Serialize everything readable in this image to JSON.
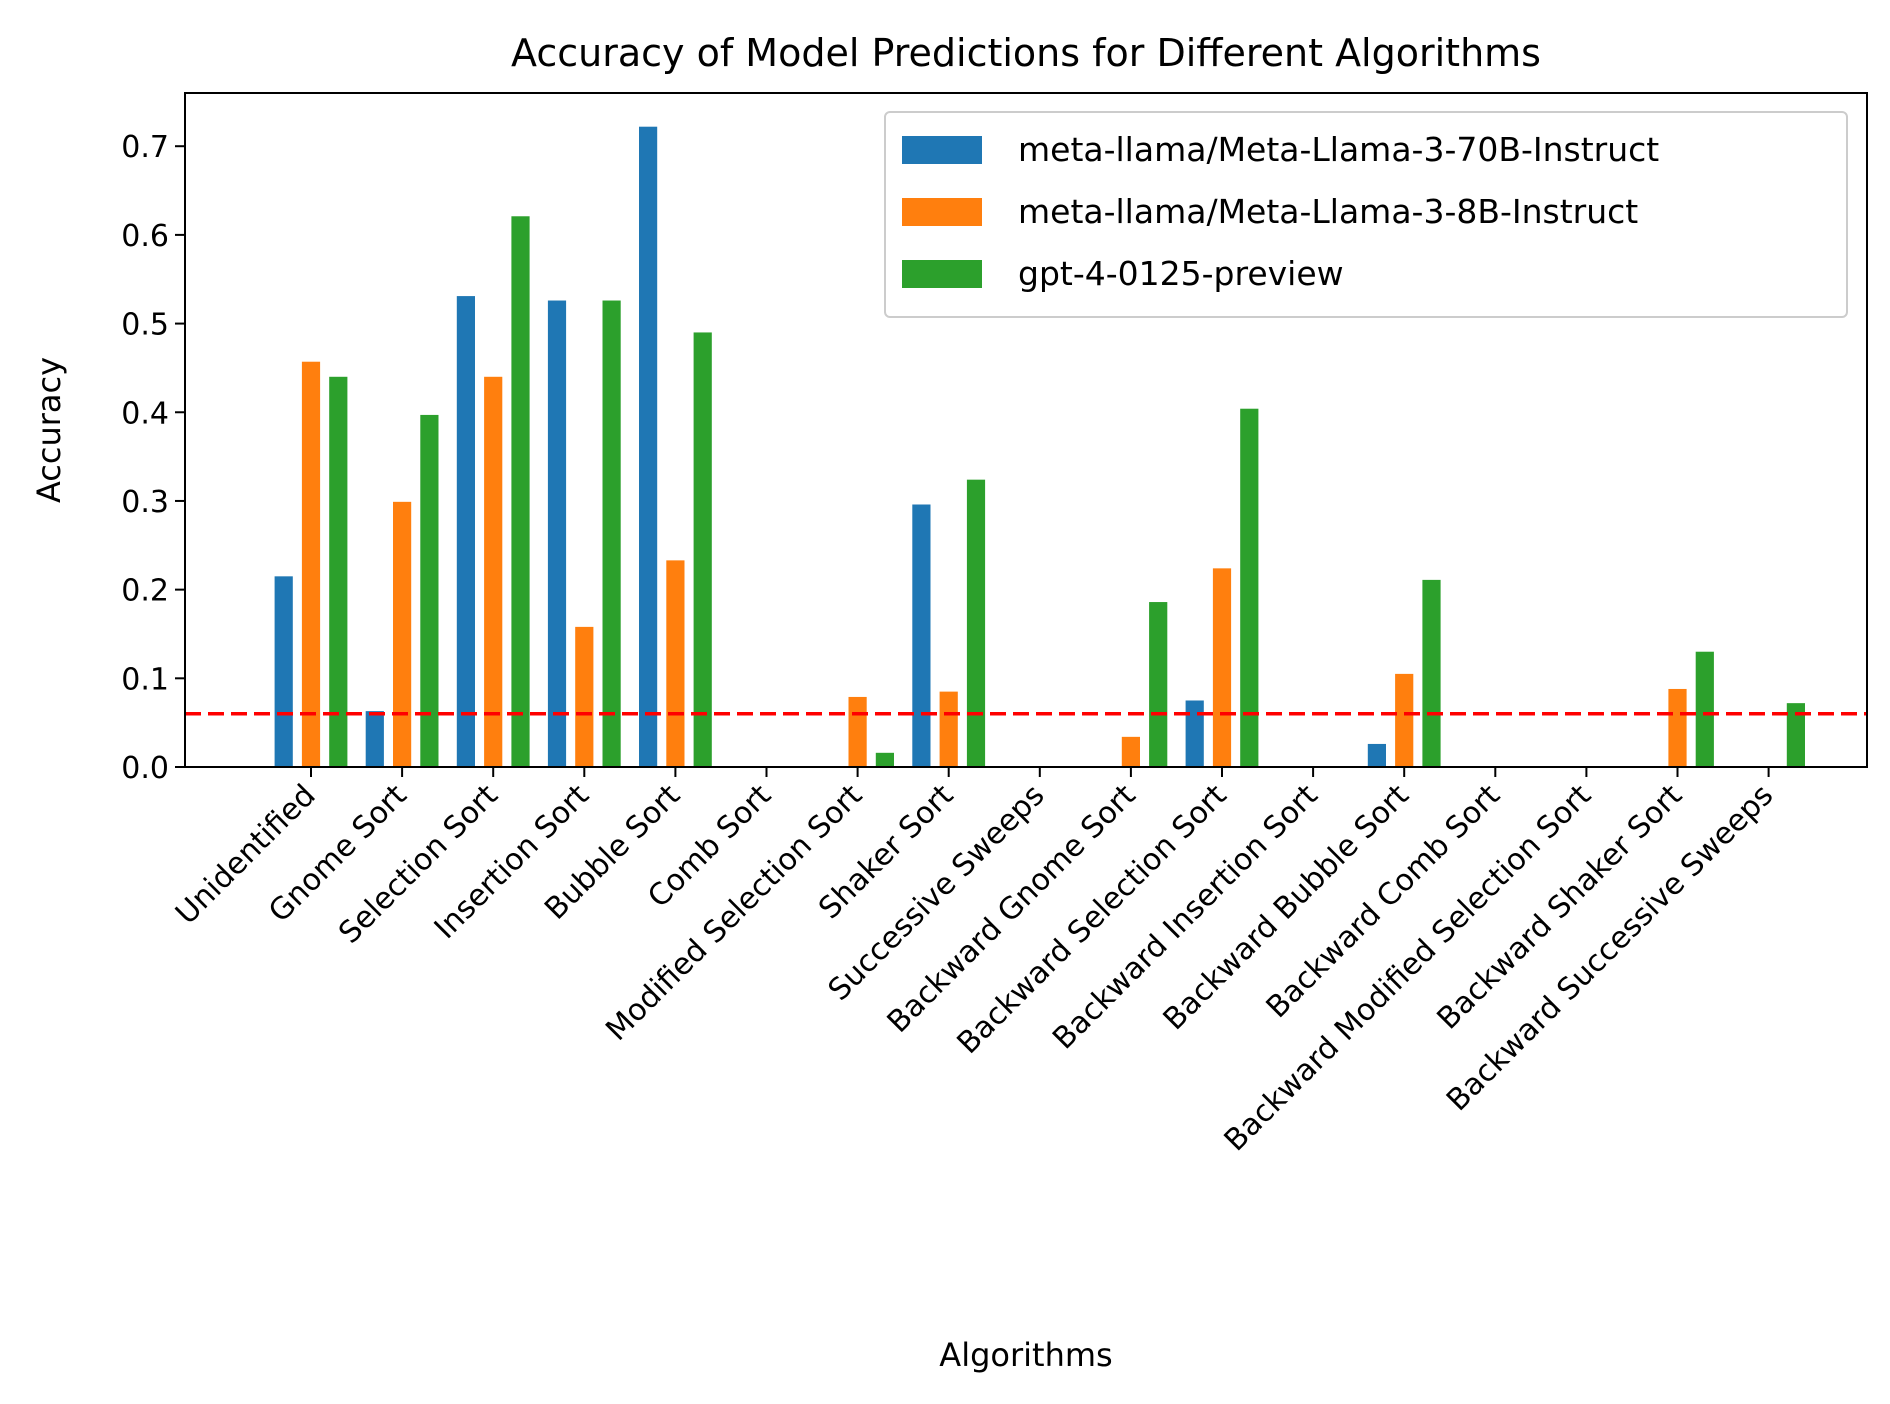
{
  "chart_data": {
    "type": "bar",
    "title": "Accuracy of Model Predictions for Different Algorithms",
    "xlabel": "Algorithms",
    "ylabel": "Accuracy",
    "ylim": [
      0,
      0.76
    ],
    "yticks": [
      0.0,
      0.1,
      0.2,
      0.3,
      0.4,
      0.5,
      0.6,
      0.7
    ],
    "ytick_labels": [
      "0.0",
      "0.1",
      "0.2",
      "0.3",
      "0.4",
      "0.5",
      "0.6",
      "0.7"
    ],
    "grid": false,
    "legend_position": "top-right",
    "reference_line": {
      "y": 0.06,
      "color": "#ff0000",
      "style": "dashed"
    },
    "categories": [
      "Unidentified",
      "Gnome Sort",
      "Selection Sort",
      "Insertion Sort",
      "Bubble Sort",
      "Comb Sort",
      "Modified Selection Sort",
      "Shaker Sort",
      "Successive Sweeps",
      "Backward Gnome Sort",
      "Backward Selection Sort",
      "Backward Insertion Sort",
      "Backward Bubble Sort",
      "Backward Comb Sort",
      "Backward Modified Selection Sort",
      "Backward Shaker Sort",
      "Backward Successive Sweeps"
    ],
    "series": [
      {
        "name": "meta-llama/Meta-Llama-3-70B-Instruct",
        "color": "#1f77b4",
        "values": [
          0.215,
          0.063,
          0.531,
          0.526,
          0.722,
          0,
          0,
          0.296,
          0,
          0,
          0.075,
          0,
          0.026,
          0,
          0,
          0,
          0
        ]
      },
      {
        "name": "meta-llama/Meta-Llama-3-8B-Instruct",
        "color": "#ff7f0e",
        "values": [
          0.457,
          0.299,
          0.44,
          0.158,
          0.233,
          0,
          0.079,
          0.085,
          0,
          0.034,
          0.224,
          0,
          0.105,
          0,
          0,
          0.088,
          0
        ]
      },
      {
        "name": "gpt-4-0125-preview",
        "color": "#2ca02c",
        "values": [
          0.44,
          0.397,
          0.621,
          0.526,
          0.49,
          0,
          0.016,
          0.324,
          0,
          0.186,
          0.404,
          0,
          0.211,
          0,
          0,
          0.13,
          0.072
        ]
      }
    ]
  }
}
